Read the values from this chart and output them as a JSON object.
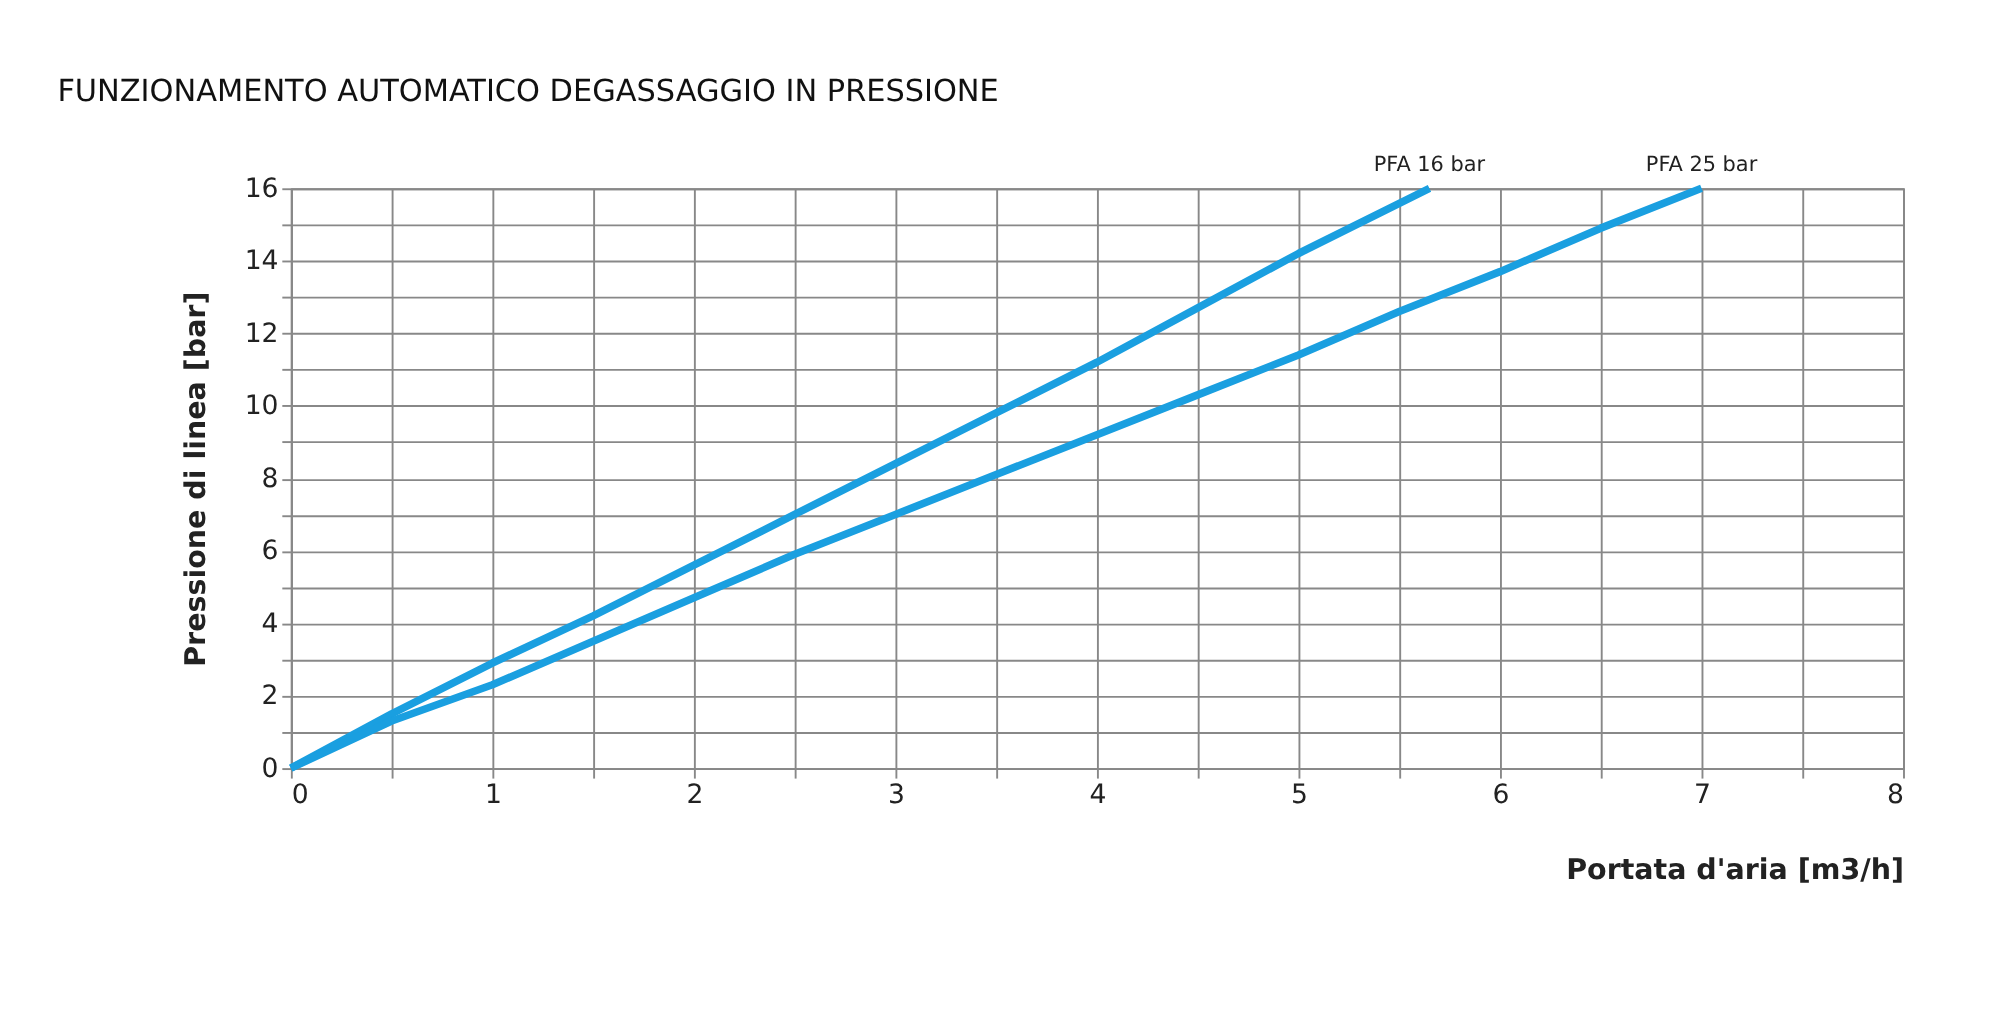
{
  "chart_data": {
    "type": "line",
    "title": "FUNZIONAMENTO AUTOMATICO DEGASSAGGIO IN PRESSIONE",
    "xlabel": "Portata d'aria [m3/h]",
    "ylabel": "Pressione di linea [bar]",
    "xlim": [
      0,
      8
    ],
    "ylim": [
      0,
      16
    ],
    "xticks": [
      0,
      {
        "value": 0.5,
        "label": null
      },
      1,
      {
        "value": 1.5,
        "label": null
      },
      2,
      {
        "value": 2.5,
        "label": null
      },
      3,
      {
        "value": 3.5,
        "label": null
      },
      4,
      {
        "value": 4.5,
        "label": null
      },
      5,
      {
        "value": 5.5,
        "label": null
      },
      6,
      {
        "value": 6.5,
        "label": null
      },
      7,
      {
        "value": 7.5,
        "label": null
      },
      8
    ],
    "yticks": [
      0,
      {
        "value": 1,
        "label": null
      },
      2,
      {
        "value": 3,
        "label": null
      },
      4,
      {
        "value": 5,
        "label": null
      },
      6,
      {
        "value": 7,
        "label": null
      },
      8,
      {
        "value": 9,
        "label": null
      },
      10,
      {
        "value": 11,
        "label": null
      },
      12,
      {
        "value": 13,
        "label": null
      },
      14,
      {
        "value": 15,
        "label": null
      },
      16
    ],
    "grid": true,
    "legend": false,
    "marker": "none",
    "line_style": "solid",
    "series": [
      {
        "name": "PFA 16 bar",
        "color": "#1a9fe0",
        "x": [
          0,
          0.5,
          1,
          1.5,
          2,
          2.5,
          3,
          3.5,
          4,
          4.5,
          5,
          5.65
        ],
        "values": [
          0,
          1.5,
          2.9,
          4.2,
          5.6,
          7.0,
          8.4,
          9.8,
          11.2,
          12.7,
          14.2,
          16
        ]
      },
      {
        "name": "PFA 25 bar",
        "color": "#1a9fe0",
        "x": [
          0,
          0.5,
          1,
          1.5,
          2,
          2.5,
          3,
          3.5,
          4,
          4.5,
          5,
          5.5,
          6,
          6.5,
          7
        ],
        "values": [
          0,
          1.3,
          2.3,
          3.5,
          4.7,
          5.9,
          7.0,
          8.1,
          9.2,
          10.3,
          11.4,
          12.6,
          13.7,
          14.9,
          16
        ]
      }
    ]
  }
}
